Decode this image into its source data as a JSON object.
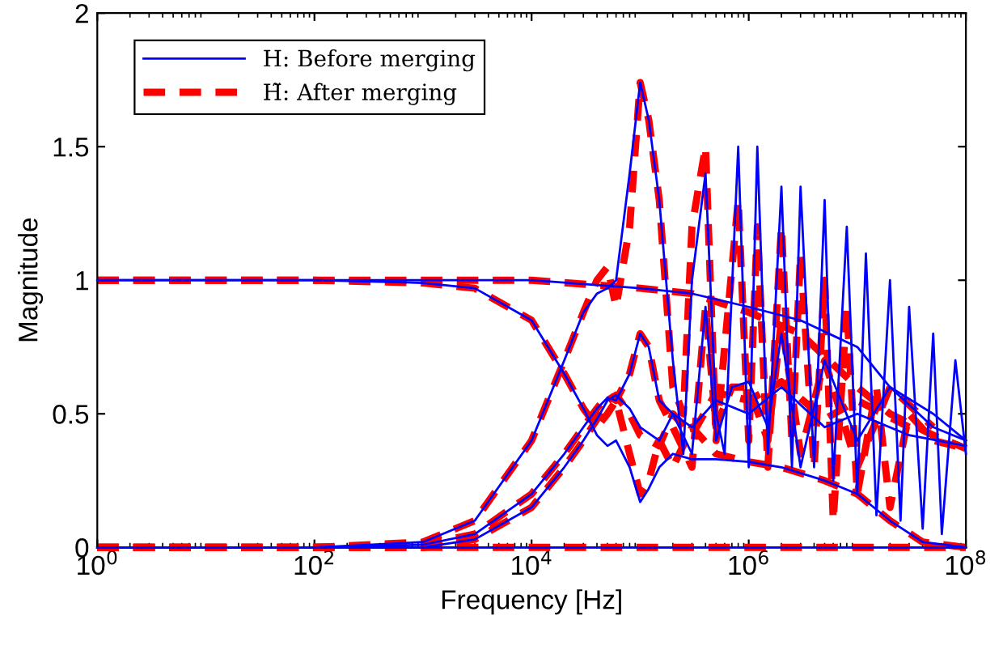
{
  "chart_data": {
    "type": "line",
    "xlabel": "Frequency [Hz]",
    "ylabel": "Magnitude",
    "log": "x",
    "grid": false,
    "legend": "top left",
    "marker": "none",
    "xlim": [
      1,
      100000000
    ],
    "ylim": [
      0,
      2
    ],
    "xticks": [
      {
        "value": 1,
        "label": "10$^{0}$"
      },
      {
        "value": 100,
        "label": "10$^{2}$"
      },
      {
        "value": 10000,
        "label": "10$^{4}$"
      },
      {
        "value": 1000000,
        "label": "10$^{6}$"
      },
      {
        "value": 100000000,
        "label": "10$^{8}$"
      }
    ],
    "yticks": [
      0,
      0.5,
      1,
      1.5,
      2
    ],
    "series": [
      {
        "name": "H: Before merging",
        "color": "#0000ff",
        "line_style": "solid",
        "x": [
          1,
          100000000
        ],
        "values": [
          0,
          0
        ]
      },
      {
        "color": "#0000ff",
        "line_style": "solid",
        "x": [
          1,
          100,
          1000,
          3000,
          10000,
          20000,
          30000,
          40000,
          50000,
          60000,
          80000,
          100000,
          120000,
          150000,
          200000,
          300000,
          500000,
          1000000,
          2000000,
          5000000,
          10000000,
          20000000,
          40000000,
          100000000
        ],
        "values": [
          1,
          1,
          0.99,
          0.97,
          0.85,
          0.65,
          0.52,
          0.42,
          0.38,
          0.4,
          0.3,
          0.17,
          0.22,
          0.3,
          0.35,
          0.33,
          0.33,
          0.32,
          0.3,
          0.25,
          0.2,
          0.1,
          0.02,
          0
        ]
      },
      {
        "color": "#0000ff",
        "line_style": "solid",
        "x": [
          1,
          100,
          1000,
          3000,
          10000,
          20000,
          30000,
          40000,
          50000,
          60000,
          80000,
          100000,
          120000,
          150000,
          200000,
          250000,
          300000,
          400000,
          500000,
          600000,
          800000,
          1000000,
          1200000,
          1500000,
          2000000,
          2500000,
          3000000,
          4000000,
          5000000,
          6000000,
          8000000,
          10000000,
          12000000,
          15000000,
          20000000,
          25000000,
          30000000,
          40000000,
          50000000,
          60000000,
          80000000,
          100000000
        ],
        "values": [
          0,
          0,
          0.02,
          0.1,
          0.4,
          0.7,
          0.88,
          0.95,
          0.97,
          1.0,
          1.4,
          1.74,
          1.6,
          1.3,
          0.7,
          0.35,
          1.0,
          1.4,
          0.5,
          0.35,
          1.5,
          0.3,
          1.5,
          0.35,
          1.35,
          0.3,
          1.35,
          0.3,
          1.3,
          0.25,
          1.2,
          0.2,
          1.1,
          0.12,
          1.0,
          0.1,
          0.9,
          0.07,
          0.8,
          0.05,
          0.7,
          0.35
        ]
      },
      {
        "color": "#0000ff",
        "line_style": "solid",
        "x": [
          1,
          100,
          1000,
          3000,
          10000,
          20000,
          30000,
          40000,
          50000,
          60000,
          80000,
          100000,
          120000,
          150000,
          200000,
          300000,
          400000,
          500000,
          700000,
          1000000,
          1500000,
          2000000,
          3000000,
          5000000,
          10000000,
          20000000,
          50000000,
          100000000
        ],
        "values": [
          0,
          0,
          0.01,
          0.05,
          0.2,
          0.35,
          0.45,
          0.52,
          0.56,
          0.55,
          0.65,
          0.8,
          0.75,
          0.55,
          0.5,
          0.35,
          0.9,
          0.4,
          0.6,
          0.62,
          0.45,
          0.8,
          0.3,
          0.7,
          0.4,
          0.6,
          0.45,
          0.4
        ]
      },
      {
        "color": "#0000ff",
        "line_style": "solid",
        "x": [
          1,
          10000,
          100000,
          300000,
          1000000,
          3000000,
          10000000,
          20000000,
          50000000,
          100000000
        ],
        "values": [
          1,
          1,
          0.97,
          0.95,
          0.9,
          0.85,
          0.75,
          0.6,
          0.5,
          0.4
        ]
      },
      {
        "color": "#0000ff",
        "line_style": "solid",
        "x": [
          1,
          100,
          1000,
          3000,
          10000,
          20000,
          30000,
          40000,
          50000,
          60000,
          80000,
          100000,
          150000,
          200000,
          300000,
          500000,
          1000000,
          2000000,
          5000000,
          10000000,
          30000000,
          100000000
        ],
        "values": [
          0,
          0,
          0,
          0.03,
          0.15,
          0.3,
          0.4,
          0.48,
          0.55,
          0.57,
          0.52,
          0.45,
          0.4,
          0.5,
          0.45,
          0.55,
          0.5,
          0.6,
          0.45,
          0.5,
          0.42,
          0.38
        ]
      },
      {
        "name": "H̃: After merging",
        "color": "#ff0000",
        "line_style": "dashed",
        "x": [
          1,
          100000000
        ],
        "values": [
          0,
          0
        ]
      },
      {
        "color": "#ff0000",
        "line_style": "dashed",
        "x": [
          1,
          100,
          1000,
          3000,
          10000,
          20000,
          30000,
          40000,
          50000,
          60000,
          80000,
          100000,
          120000,
          150000,
          200000,
          300000,
          500000,
          1000000,
          2000000,
          5000000,
          10000000,
          20000000,
          40000000,
          100000000
        ],
        "values": [
          1,
          1,
          0.99,
          0.97,
          0.85,
          0.65,
          0.52,
          0.45,
          0.5,
          0.55,
          0.35,
          0.2,
          0.25,
          0.4,
          0.3,
          0.45,
          0.35,
          0.32,
          0.3,
          0.25,
          0.2,
          0.1,
          0.02,
          0
        ]
      },
      {
        "color": "#ff0000",
        "line_style": "dashed",
        "x": [
          1,
          100,
          1000,
          3000,
          10000,
          20000,
          30000,
          40000,
          50000,
          60000,
          80000,
          100000,
          120000,
          150000,
          200000,
          250000,
          300000,
          400000,
          500000,
          800000,
          1000000,
          1200000,
          1500000,
          2000000,
          2500000,
          3000000,
          4000000,
          5000000,
          6000000,
          8000000,
          10000000,
          15000000,
          20000000,
          30000000,
          50000000,
          100000000
        ],
        "values": [
          0,
          0,
          0.02,
          0.1,
          0.4,
          0.7,
          0.88,
          1.0,
          1.05,
          0.9,
          1.2,
          1.74,
          1.6,
          1.3,
          0.6,
          0.5,
          1.2,
          1.5,
          0.4,
          1.3,
          0.4,
          1.2,
          0.3,
          1.2,
          0.4,
          1.1,
          0.3,
          1.0,
          0.1,
          0.9,
          0.2,
          0.6,
          0.15,
          0.5,
          0.4,
          0.37
        ]
      },
      {
        "color": "#ff0000",
        "line_style": "dashed",
        "x": [
          1,
          100,
          1000,
          3000,
          10000,
          20000,
          30000,
          40000,
          50000,
          60000,
          80000,
          100000,
          120000,
          150000,
          200000,
          300000,
          400000,
          500000,
          700000,
          1000000,
          1500000,
          2000000,
          3000000,
          5000000,
          10000000,
          20000000,
          50000000
        ],
        "values": [
          0,
          0,
          0.01,
          0.05,
          0.2,
          0.35,
          0.45,
          0.52,
          0.57,
          0.55,
          0.65,
          0.8,
          0.75,
          0.55,
          0.45,
          0.3,
          0.9,
          0.45,
          0.6,
          0.6,
          0.4,
          0.85,
          0.35,
          0.7,
          0.3,
          0.6,
          0.45
        ]
      },
      {
        "color": "#ff0000",
        "line_style": "dashed",
        "x": [
          1,
          10000,
          100000,
          300000,
          1000000,
          3000000,
          10000000,
          20000000,
          50000000,
          100000000
        ],
        "values": [
          1,
          1,
          0.97,
          0.95,
          0.88,
          0.8,
          0.6,
          0.5,
          0.42,
          0.37
        ]
      },
      {
        "color": "#ff0000",
        "line_style": "dashed",
        "x": [
          1,
          100,
          1000,
          3000,
          10000,
          20000,
          30000,
          40000,
          50000,
          60000,
          80000,
          100000,
          150000,
          200000,
          300000,
          500000,
          1000000,
          2000000,
          5000000,
          10000000,
          30000000
        ],
        "values": [
          0,
          0,
          0,
          0.03,
          0.15,
          0.3,
          0.4,
          0.48,
          0.55,
          0.57,
          0.5,
          0.42,
          0.38,
          0.5,
          0.42,
          0.58,
          0.55,
          0.62,
          0.48,
          0.55,
          0.45
        ]
      }
    ]
  }
}
